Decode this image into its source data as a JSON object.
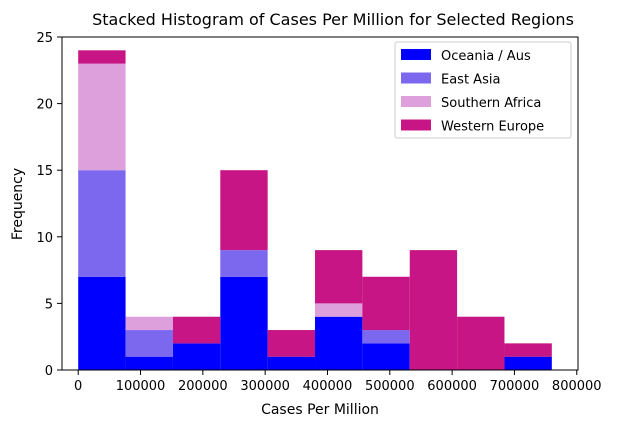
{
  "chart_data": {
    "type": "bar",
    "subtype": "stacked-histogram",
    "title": "Stacked Histogram of Cases Per Million for Selected Regions",
    "xlabel": "Cases Per Million",
    "ylabel": "Frequency",
    "xlim": [
      -26000,
      802000
    ],
    "ylim": [
      0,
      25
    ],
    "xticks": [
      0,
      100000,
      200000,
      300000,
      400000,
      500000,
      600000,
      700000,
      800000
    ],
    "xtick_labels": [
      "0",
      "100000",
      "200000",
      "300000",
      "400000",
      "500000",
      "600000",
      "700000",
      "800000"
    ],
    "yticks": [
      0,
      5,
      10,
      15,
      20,
      25
    ],
    "ytick_labels": [
      "0",
      "5",
      "10",
      "15",
      "20",
      "25"
    ],
    "bin_edges": [
      0,
      76000,
      152000,
      228000,
      304000,
      380000,
      456000,
      532000,
      608000,
      684000,
      760000
    ],
    "series": [
      {
        "name": "Oceania / Aus",
        "color": "#0000ff",
        "values": [
          7,
          1,
          2,
          7,
          1,
          4,
          2,
          0,
          0,
          1
        ]
      },
      {
        "name": "East Asia",
        "color": "#7b68ee",
        "values": [
          8,
          2,
          0,
          2,
          0,
          0,
          1,
          0,
          0,
          0
        ]
      },
      {
        "name": "Southern Africa",
        "color": "#dda0dd",
        "values": [
          8,
          1,
          0,
          0,
          0,
          1,
          0,
          0,
          0,
          0
        ]
      },
      {
        "name": "Western Europe",
        "color": "#c71585",
        "values": [
          1,
          0,
          2,
          6,
          2,
          4,
          4,
          9,
          4,
          1
        ]
      }
    ],
    "legend": {
      "position": "top-right",
      "entries": [
        "Oceania / Aus",
        "East Asia",
        "Southern Africa",
        "Western Europe"
      ]
    },
    "grid": false
  }
}
